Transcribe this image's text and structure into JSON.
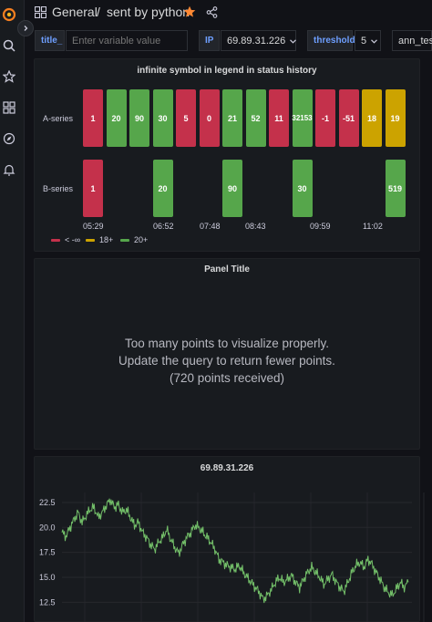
{
  "colors": {
    "red": "#c4314b",
    "green": "#56a64b",
    "yellow": "#cca300",
    "bg": "#111217",
    "panel": "#181b1f",
    "accent_star": "#ff8833",
    "line": "#73bf69"
  },
  "breadcrumb": {
    "folder": "General",
    "separator": "/",
    "dashboard": "sent by python"
  },
  "variables": {
    "title_label": "title_",
    "title_placeholder": "Enter variable value",
    "ip_label": "IP",
    "ip_value": "69.89.31.226",
    "threshold_label": "threshold",
    "threshold_value": "5",
    "ann_label": "ann_test"
  },
  "status_panel": {
    "title": "infinite symbol in legend in status history",
    "rows": [
      {
        "label": "A-series",
        "cells": [
          {
            "text": "1",
            "color": "red"
          },
          {
            "text": "20",
            "color": "green"
          },
          {
            "text": "90",
            "color": "green"
          },
          {
            "text": "30",
            "color": "green"
          },
          {
            "text": "5",
            "color": "red"
          },
          {
            "text": "0",
            "color": "red"
          },
          {
            "text": "21",
            "color": "green"
          },
          {
            "text": "52",
            "color": "green"
          },
          {
            "text": "11",
            "color": "red"
          },
          {
            "text": "32153",
            "color": "green"
          },
          {
            "text": "-1",
            "color": "red"
          },
          {
            "text": "-51",
            "color": "red"
          },
          {
            "text": "18",
            "color": "yellow"
          },
          {
            "text": "19",
            "color": "yellow"
          }
        ]
      },
      {
        "label": "B-series",
        "cells": [
          {
            "text": "1",
            "color": "red",
            "slot": 0
          },
          {
            "text": "20",
            "color": "green",
            "slot": 3
          },
          {
            "text": "90",
            "color": "green",
            "slot": 6
          },
          {
            "text": "30",
            "color": "green",
            "slot": 9
          },
          {
            "text": "519",
            "color": "green",
            "slot": 13
          }
        ]
      }
    ],
    "times": [
      "05:29",
      "06:52",
      "07:48",
      "08:43",
      "09:59",
      "11:02"
    ],
    "legend": [
      {
        "label": "< -∞",
        "color": "red"
      },
      {
        "label": "18+",
        "color": "yellow"
      },
      {
        "label": "20+",
        "color": "green"
      }
    ]
  },
  "panel_title_panel": {
    "title": "Panel Title",
    "line1": "Too many points to visualize properly.",
    "line2": "Update the query to return fewer points.",
    "line3": "(720 points received)"
  },
  "chart_data": {
    "type": "line",
    "title": "69.89.31.226",
    "xlabel": "",
    "ylabel": "",
    "yticks": [
      "22.5",
      "20.0",
      "17.5",
      "15.0",
      "12.5"
    ],
    "ylim": [
      11.8,
      23.5
    ],
    "grid": true,
    "series": [
      {
        "values": [
          19.5,
          19.1,
          20.0,
          20.8,
          21.5,
          20.5,
          21.2,
          21.8,
          22.0,
          21.0,
          21.5,
          22.2,
          22.8,
          22.0,
          22.3,
          21.5,
          21.8,
          21.0,
          20.2,
          20.5,
          19.5,
          19.0,
          18.3,
          17.8,
          18.5,
          19.0,
          19.8,
          18.8,
          18.0,
          17.4,
          18.3,
          19.0,
          19.5,
          20.2,
          20.0,
          19.5,
          19.0,
          18.5,
          17.8,
          16.8,
          16.5,
          16.2,
          16.0,
          15.8,
          16.2,
          15.5,
          15.0,
          14.5,
          14.0,
          13.5,
          12.8,
          13.2,
          13.8,
          14.5,
          15.0,
          14.5,
          14.8,
          15.2,
          14.5,
          14.0,
          14.8,
          15.5,
          16.0,
          15.5,
          15.0,
          14.3,
          14.8,
          15.3,
          14.6,
          14.0,
          13.6,
          14.5,
          15.5,
          16.2,
          16.5,
          16.0,
          16.8,
          16.3,
          15.5,
          14.8,
          14.0,
          13.5,
          13.2,
          13.8,
          14.5,
          14.0,
          14.5
        ]
      }
    ]
  }
}
